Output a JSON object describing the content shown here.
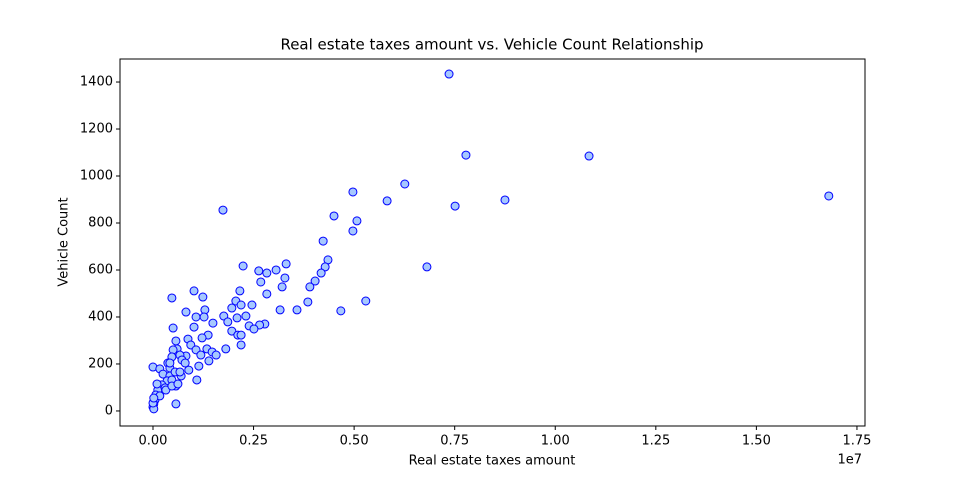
{
  "chart_data": {
    "type": "scatter",
    "title": "Real estate taxes amount vs. Vehicle Count Relationship",
    "x_label": "Real estate taxes amount",
    "y_label": "Vehicle Count",
    "x_offset_label": "1e7",
    "color": "#a6c8ff",
    "edgecolor": "#0000ff",
    "xlim": [
      -820000,
      17700000
    ],
    "ylim": [
      -64,
      1498
    ],
    "xticks": [
      {
        "value": 0,
        "label": "0.00"
      },
      {
        "value": 2500000,
        "label": "0.25"
      },
      {
        "value": 5000000,
        "label": "0.50"
      },
      {
        "value": 7500000,
        "label": "0.75"
      },
      {
        "value": 10000000,
        "label": "1.00"
      },
      {
        "value": 12500000,
        "label": "1.25"
      },
      {
        "value": 15000000,
        "label": "1.50"
      },
      {
        "value": 17500000,
        "label": "1.75"
      }
    ],
    "yticks": [
      0,
      200,
      400,
      600,
      800,
      1000,
      1200,
      1400
    ],
    "x": [
      7360000,
      7780000,
      10840000,
      16800000,
      8750000,
      7510000,
      6260000,
      4970000,
      5820000,
      4500000,
      5070000,
      4970000,
      1740000,
      4230000,
      4350000,
      4280000,
      6810000,
      4180000,
      4030000,
      3900000,
      3850000,
      5290000,
      4670000,
      3580000,
      3160000,
      3310000,
      3060000,
      3280000,
      3210000,
      2830000,
      2630000,
      2830000,
      2680000,
      2240000,
      2460000,
      2160000,
      2060000,
      2190000,
      1960000,
      2310000,
      1760000,
      2090000,
      1860000,
      2780000,
      2650000,
      2390000,
      2510000,
      1960000,
      2110000,
      2190000,
      2190000,
      1810000,
      1020000,
      470000,
      1240000,
      1290000,
      1270000,
      1490000,
      1020000,
      500000,
      1370000,
      1220000,
      870000,
      570000,
      600000,
      940000,
      1070000,
      1340000,
      1470000,
      1570000,
      1190000,
      1390000,
      820000,
      670000,
      500000,
      470000,
      370000,
      720000,
      890000,
      700000,
      1090000,
      570000,
      0,
      170000,
      250000,
      420000,
      350000,
      220000,
      120000,
      70000,
      50000,
      20000,
      0,
      20000,
      470000,
      570000,
      300000,
      100000,
      420000,
      550000,
      670000,
      320000,
      170000,
      0,
      20000,
      800000,
      1140000,
      820000,
      1070000,
      420000,
      470000,
      620000
    ],
    "y": [
      1434,
      1089,
      1085,
      915,
      898,
      872,
      966,
      932,
      894,
      830,
      809,
      766,
      855,
      723,
      643,
      613,
      613,
      587,
      553,
      528,
      464,
      468,
      426,
      430,
      430,
      626,
      600,
      566,
      528,
      498,
      596,
      587,
      549,
      617,
      451,
      511,
      468,
      451,
      438,
      404,
      404,
      396,
      379,
      370,
      366,
      362,
      349,
      340,
      323,
      323,
      281,
      264,
      511,
      481,
      485,
      430,
      400,
      374,
      357,
      353,
      323,
      311,
      306,
      298,
      264,
      281,
      260,
      264,
      251,
      238,
      238,
      213,
      234,
      238,
      260,
      230,
      204,
      217,
      174,
      149,
      132,
      30,
      187,
      179,
      157,
      149,
      128,
      111,
      89,
      68,
      47,
      30,
      17,
      9,
      132,
      106,
      98,
      115,
      183,
      166,
      166,
      89,
      64,
      34,
      55,
      204,
      191,
      421,
      400,
      204,
      106,
      115
    ]
  }
}
